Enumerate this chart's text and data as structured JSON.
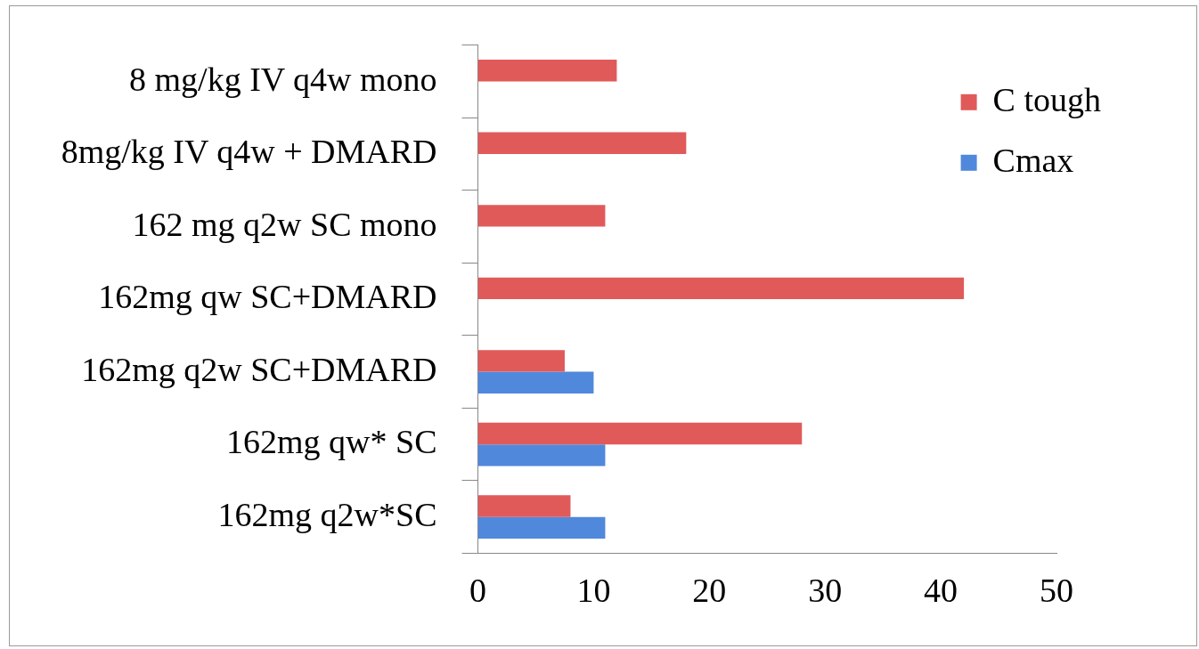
{
  "chart_data": {
    "type": "bar",
    "orientation": "horizontal",
    "categories": [
      "8 mg/kg IV q4w mono",
      "8mg/kg IV q4w + DMARD",
      "162 mg q2w SC mono",
      "162mg qw SC+DMARD",
      "162mg q2w SC+DMARD",
      "162mg qw* SC",
      "162mg q2w*SC"
    ],
    "series": [
      {
        "name": "C tough",
        "color": "#e05a5a",
        "values": [
          12,
          18,
          11,
          42,
          7.5,
          28,
          8
        ]
      },
      {
        "name": "Cmax",
        "color": "#5088dc",
        "values": [
          null,
          null,
          null,
          null,
          10,
          11,
          11
        ]
      }
    ],
    "xlim": [
      0,
      50
    ],
    "xticks": [
      0,
      10,
      20,
      30,
      40,
      50
    ],
    "grid": false,
    "legend": "top right"
  }
}
